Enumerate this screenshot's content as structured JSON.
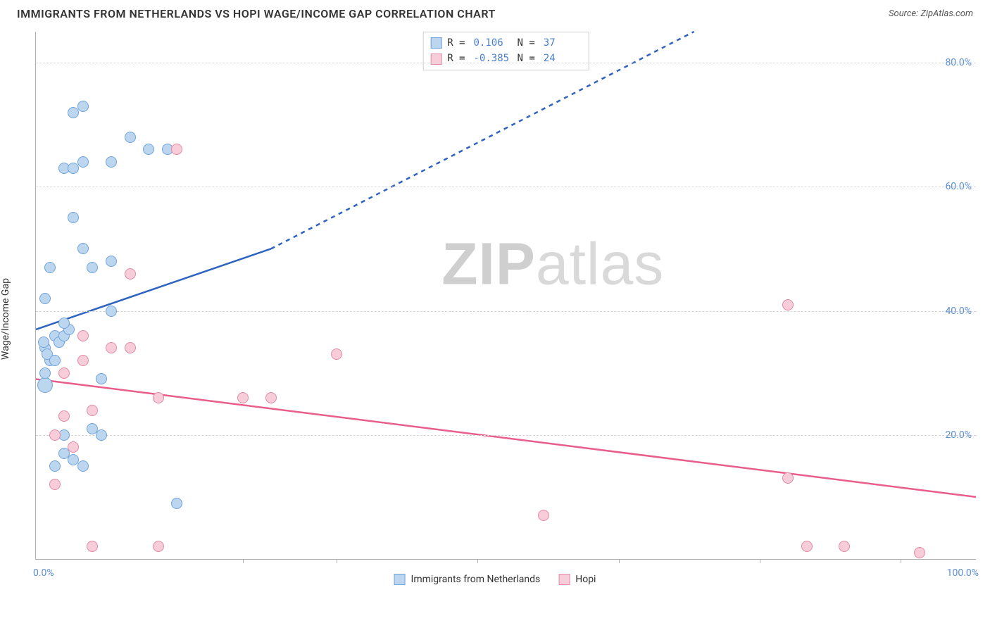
{
  "header": {
    "title": "IMMIGRANTS FROM NETHERLANDS VS HOPI WAGE/INCOME GAP CORRELATION CHART",
    "source_prefix": "Source: ",
    "source_name": "ZipAtlas.com"
  },
  "ylabel": "Wage/Income Gap",
  "watermark": {
    "bold": "ZIP",
    "rest": "atlas"
  },
  "chart": {
    "type": "scatter",
    "xlim": [
      0,
      100
    ],
    "ylim": [
      0,
      85
    ],
    "x_axis_label_left": "0.0%",
    "x_axis_label_right": "100.0%",
    "y_ticks": [
      {
        "v": 20,
        "label": "20.0%"
      },
      {
        "v": 40,
        "label": "40.0%"
      },
      {
        "v": 60,
        "label": "60.0%"
      },
      {
        "v": 80,
        "label": "80.0%"
      }
    ],
    "x_tick_marks": [
      22,
      32,
      47,
      62,
      77,
      92
    ],
    "background_color": "#ffffff",
    "grid_color": "#d5d5d5",
    "series": [
      {
        "key": "netherlands",
        "label": "Immigrants from Netherlands",
        "marker_fill": "#bcd6f0",
        "marker_stroke": "#6fa3dd",
        "marker_size": 16,
        "line_color": "#2e63c0",
        "line_width": 2.5,
        "trend_solid": {
          "x1": 0,
          "y1": 37,
          "x2": 25,
          "y2": 50
        },
        "trend_dashed": {
          "x1": 25,
          "y1": 50,
          "x2": 70,
          "y2": 85
        },
        "R": "0.106",
        "N": "37",
        "points": [
          {
            "x": 1,
            "y": 28,
            "s": 22
          },
          {
            "x": 1,
            "y": 30
          },
          {
            "x": 1.5,
            "y": 32
          },
          {
            "x": 1,
            "y": 34
          },
          {
            "x": 0.8,
            "y": 35
          },
          {
            "x": 2,
            "y": 36
          },
          {
            "x": 1.2,
            "y": 33
          },
          {
            "x": 2.5,
            "y": 35
          },
          {
            "x": 3,
            "y": 36
          },
          {
            "x": 2,
            "y": 32
          },
          {
            "x": 3.5,
            "y": 37
          },
          {
            "x": 1,
            "y": 42
          },
          {
            "x": 3,
            "y": 38
          },
          {
            "x": 8,
            "y": 40
          },
          {
            "x": 1.5,
            "y": 47
          },
          {
            "x": 5,
            "y": 50
          },
          {
            "x": 4,
            "y": 55
          },
          {
            "x": 8,
            "y": 48
          },
          {
            "x": 6,
            "y": 47
          },
          {
            "x": 3,
            "y": 63
          },
          {
            "x": 5,
            "y": 64
          },
          {
            "x": 4,
            "y": 63
          },
          {
            "x": 8,
            "y": 64
          },
          {
            "x": 12,
            "y": 66
          },
          {
            "x": 14,
            "y": 66
          },
          {
            "x": 10,
            "y": 68
          },
          {
            "x": 4,
            "y": 72
          },
          {
            "x": 5,
            "y": 73
          },
          {
            "x": 2,
            "y": 15
          },
          {
            "x": 3,
            "y": 17
          },
          {
            "x": 4,
            "y": 16
          },
          {
            "x": 5,
            "y": 15
          },
          {
            "x": 3,
            "y": 20
          },
          {
            "x": 6,
            "y": 21
          },
          {
            "x": 7,
            "y": 20
          },
          {
            "x": 7,
            "y": 29
          },
          {
            "x": 15,
            "y": 9
          }
        ]
      },
      {
        "key": "hopi",
        "label": "Hopi",
        "marker_fill": "#f6cdd8",
        "marker_stroke": "#e48aa4",
        "marker_size": 16,
        "line_color": "#e85d8a",
        "line_width": 2.5,
        "trend_solid": {
          "x1": 0,
          "y1": 29,
          "x2": 100,
          "y2": 10
        },
        "trend_dashed": null,
        "R": "-0.385",
        "N": "24",
        "points": [
          {
            "x": 2,
            "y": 12
          },
          {
            "x": 4,
            "y": 18
          },
          {
            "x": 2,
            "y": 20
          },
          {
            "x": 6,
            "y": 2
          },
          {
            "x": 6,
            "y": 24
          },
          {
            "x": 3,
            "y": 23
          },
          {
            "x": 3,
            "y": 30
          },
          {
            "x": 5,
            "y": 36
          },
          {
            "x": 10,
            "y": 34
          },
          {
            "x": 8,
            "y": 34
          },
          {
            "x": 13,
            "y": 26
          },
          {
            "x": 10,
            "y": 46
          },
          {
            "x": 15,
            "y": 66
          },
          {
            "x": 13,
            "y": 2
          },
          {
            "x": 22,
            "y": 26
          },
          {
            "x": 25,
            "y": 26
          },
          {
            "x": 32,
            "y": 33
          },
          {
            "x": 54,
            "y": 7
          },
          {
            "x": 80,
            "y": 41
          },
          {
            "x": 80,
            "y": 13
          },
          {
            "x": 82,
            "y": 2
          },
          {
            "x": 86,
            "y": 2
          },
          {
            "x": 94,
            "y": 1
          },
          {
            "x": 5,
            "y": 32
          }
        ]
      }
    ]
  },
  "legend_top": {
    "labels": {
      "R": "R =",
      "N": "N ="
    }
  }
}
